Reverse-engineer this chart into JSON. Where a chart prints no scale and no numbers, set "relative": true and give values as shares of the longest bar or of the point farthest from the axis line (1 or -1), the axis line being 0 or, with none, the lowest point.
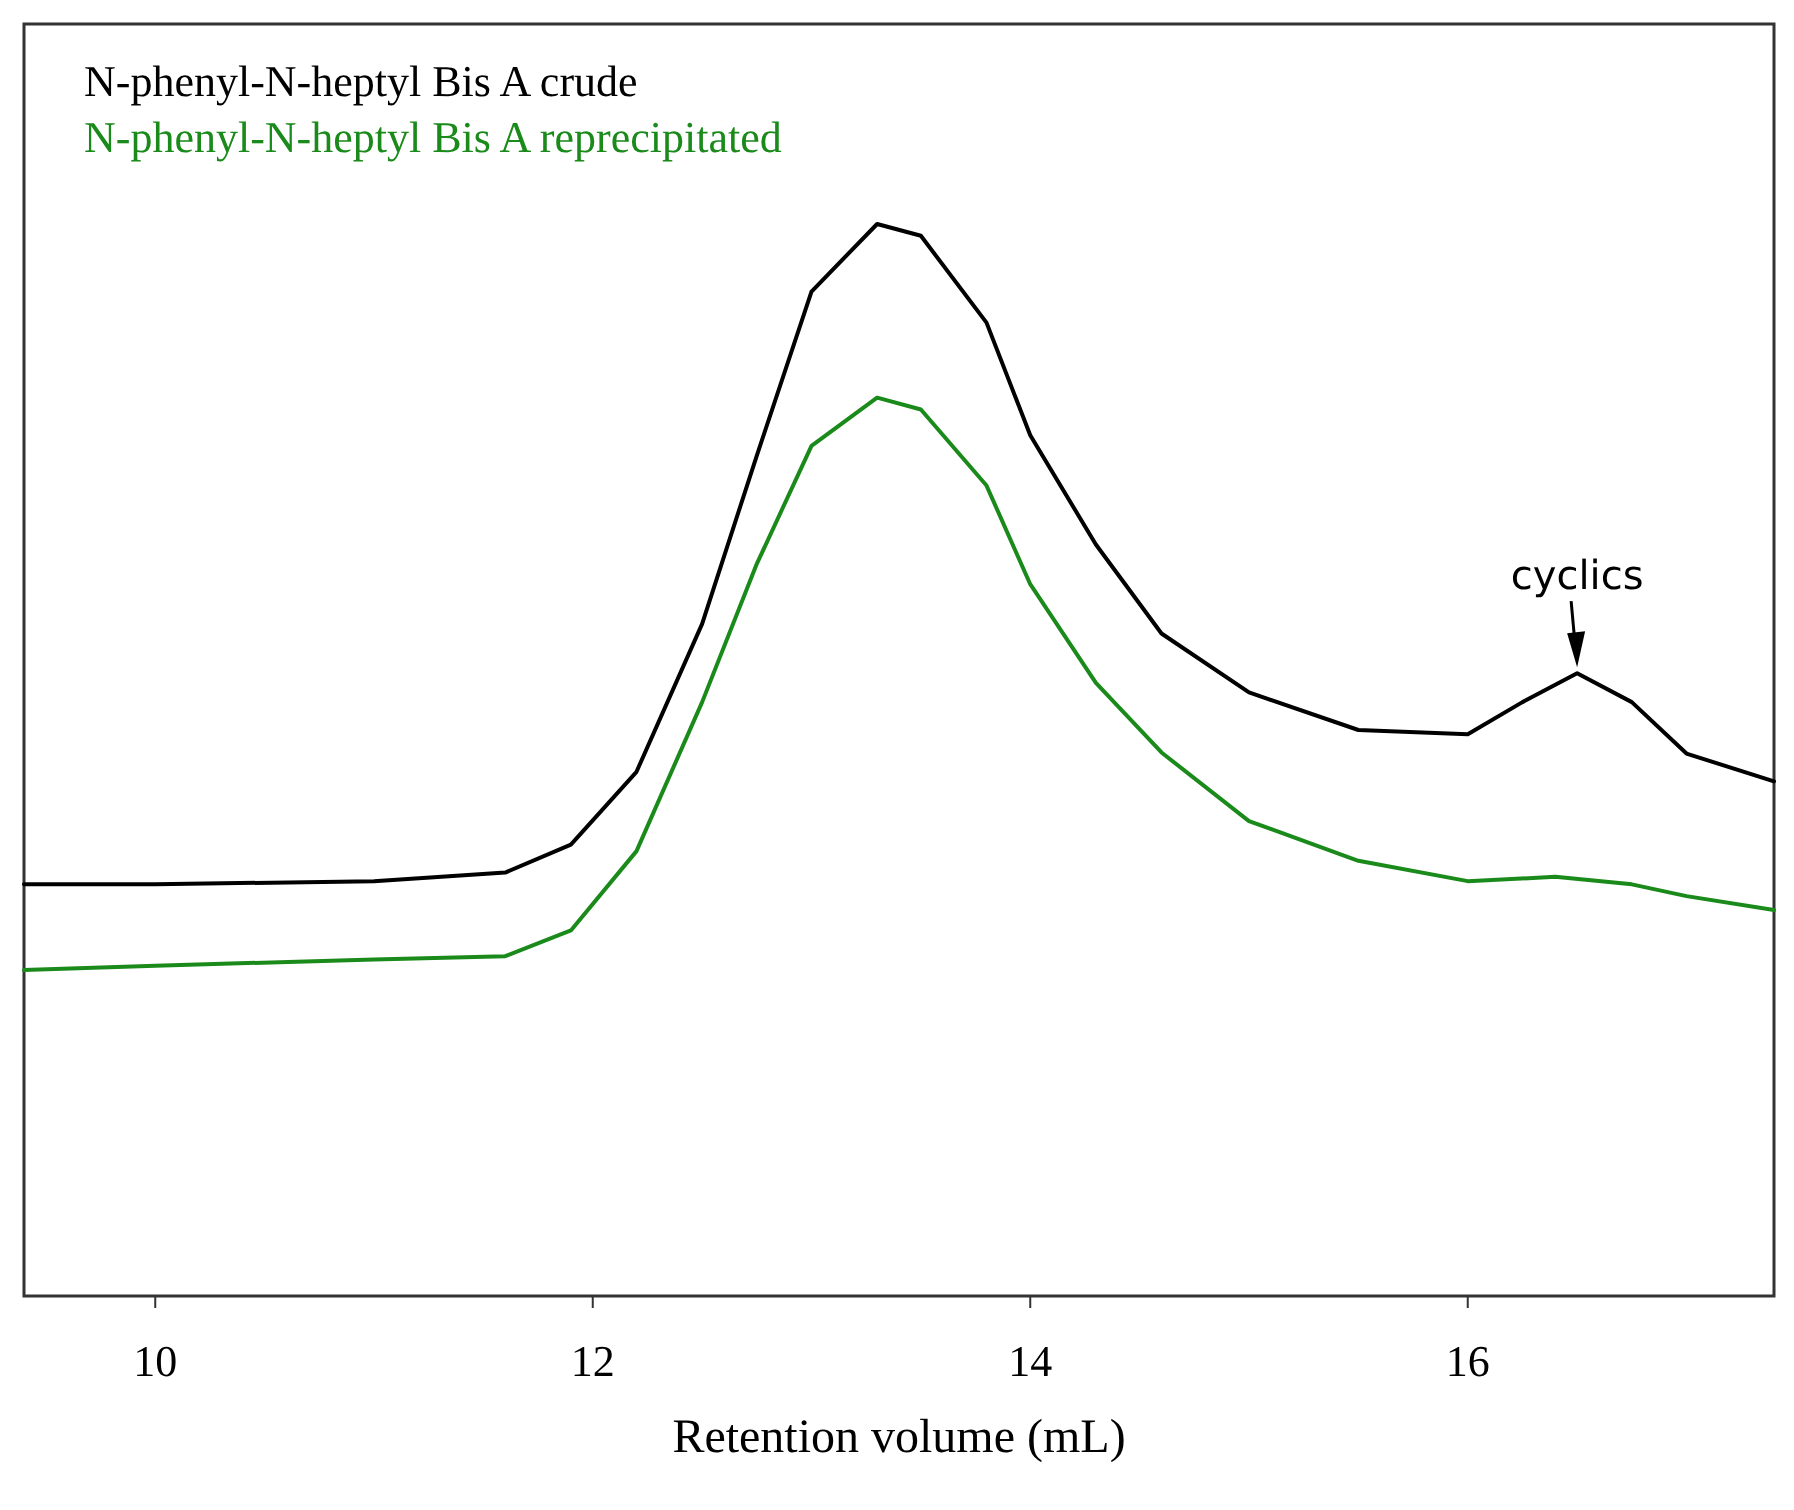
{
  "chart_data": {
    "type": "line",
    "relative": true,
    "xlabel": "Retention volume (mL)",
    "xlim": [
      9.4,
      17.4
    ],
    "xticks": [
      10,
      12,
      14,
      16
    ],
    "legend": "top left",
    "annotations": [
      {
        "text": "cyclics",
        "x": 16.5,
        "y": 0.581
      }
    ],
    "series": [
      {
        "name": "N-phenyl-N-heptyl Bis A crude",
        "color": "#000000",
        "x": [
          9.4,
          10,
          11,
          11.6,
          11.9,
          12.2,
          12.5,
          12.75,
          13.0,
          13.3,
          13.5,
          13.8,
          14.0,
          14.3,
          14.6,
          15.0,
          15.5,
          16.0,
          16.25,
          16.5,
          16.75,
          17.0,
          17.4
        ],
        "values": [
          0.384,
          0.384,
          0.387,
          0.395,
          0.421,
          0.489,
          0.627,
          0.784,
          0.937,
          1,
          0.989,
          0.908,
          0.803,
          0.701,
          0.618,
          0.563,
          0.528,
          0.524,
          0.554,
          0.581,
          0.554,
          0.506,
          0.48
        ]
      },
      {
        "name": "N-phenyl-N-heptyl Bis A reprecipitated",
        "color": "#1a8a1a",
        "x": [
          9.4,
          10,
          11,
          11.6,
          11.9,
          12.2,
          12.5,
          12.75,
          13.0,
          13.3,
          13.5,
          13.8,
          14.0,
          14.3,
          14.6,
          15.0,
          15.5,
          16.0,
          16.4,
          16.75,
          17.0,
          17.4
        ],
        "values": [
          0.304,
          0.308,
          0.314,
          0.317,
          0.341,
          0.415,
          0.554,
          0.683,
          0.793,
          0.838,
          0.827,
          0.756,
          0.664,
          0.572,
          0.507,
          0.443,
          0.406,
          0.387,
          0.391,
          0.384,
          0.373,
          0.36
        ]
      }
    ]
  }
}
